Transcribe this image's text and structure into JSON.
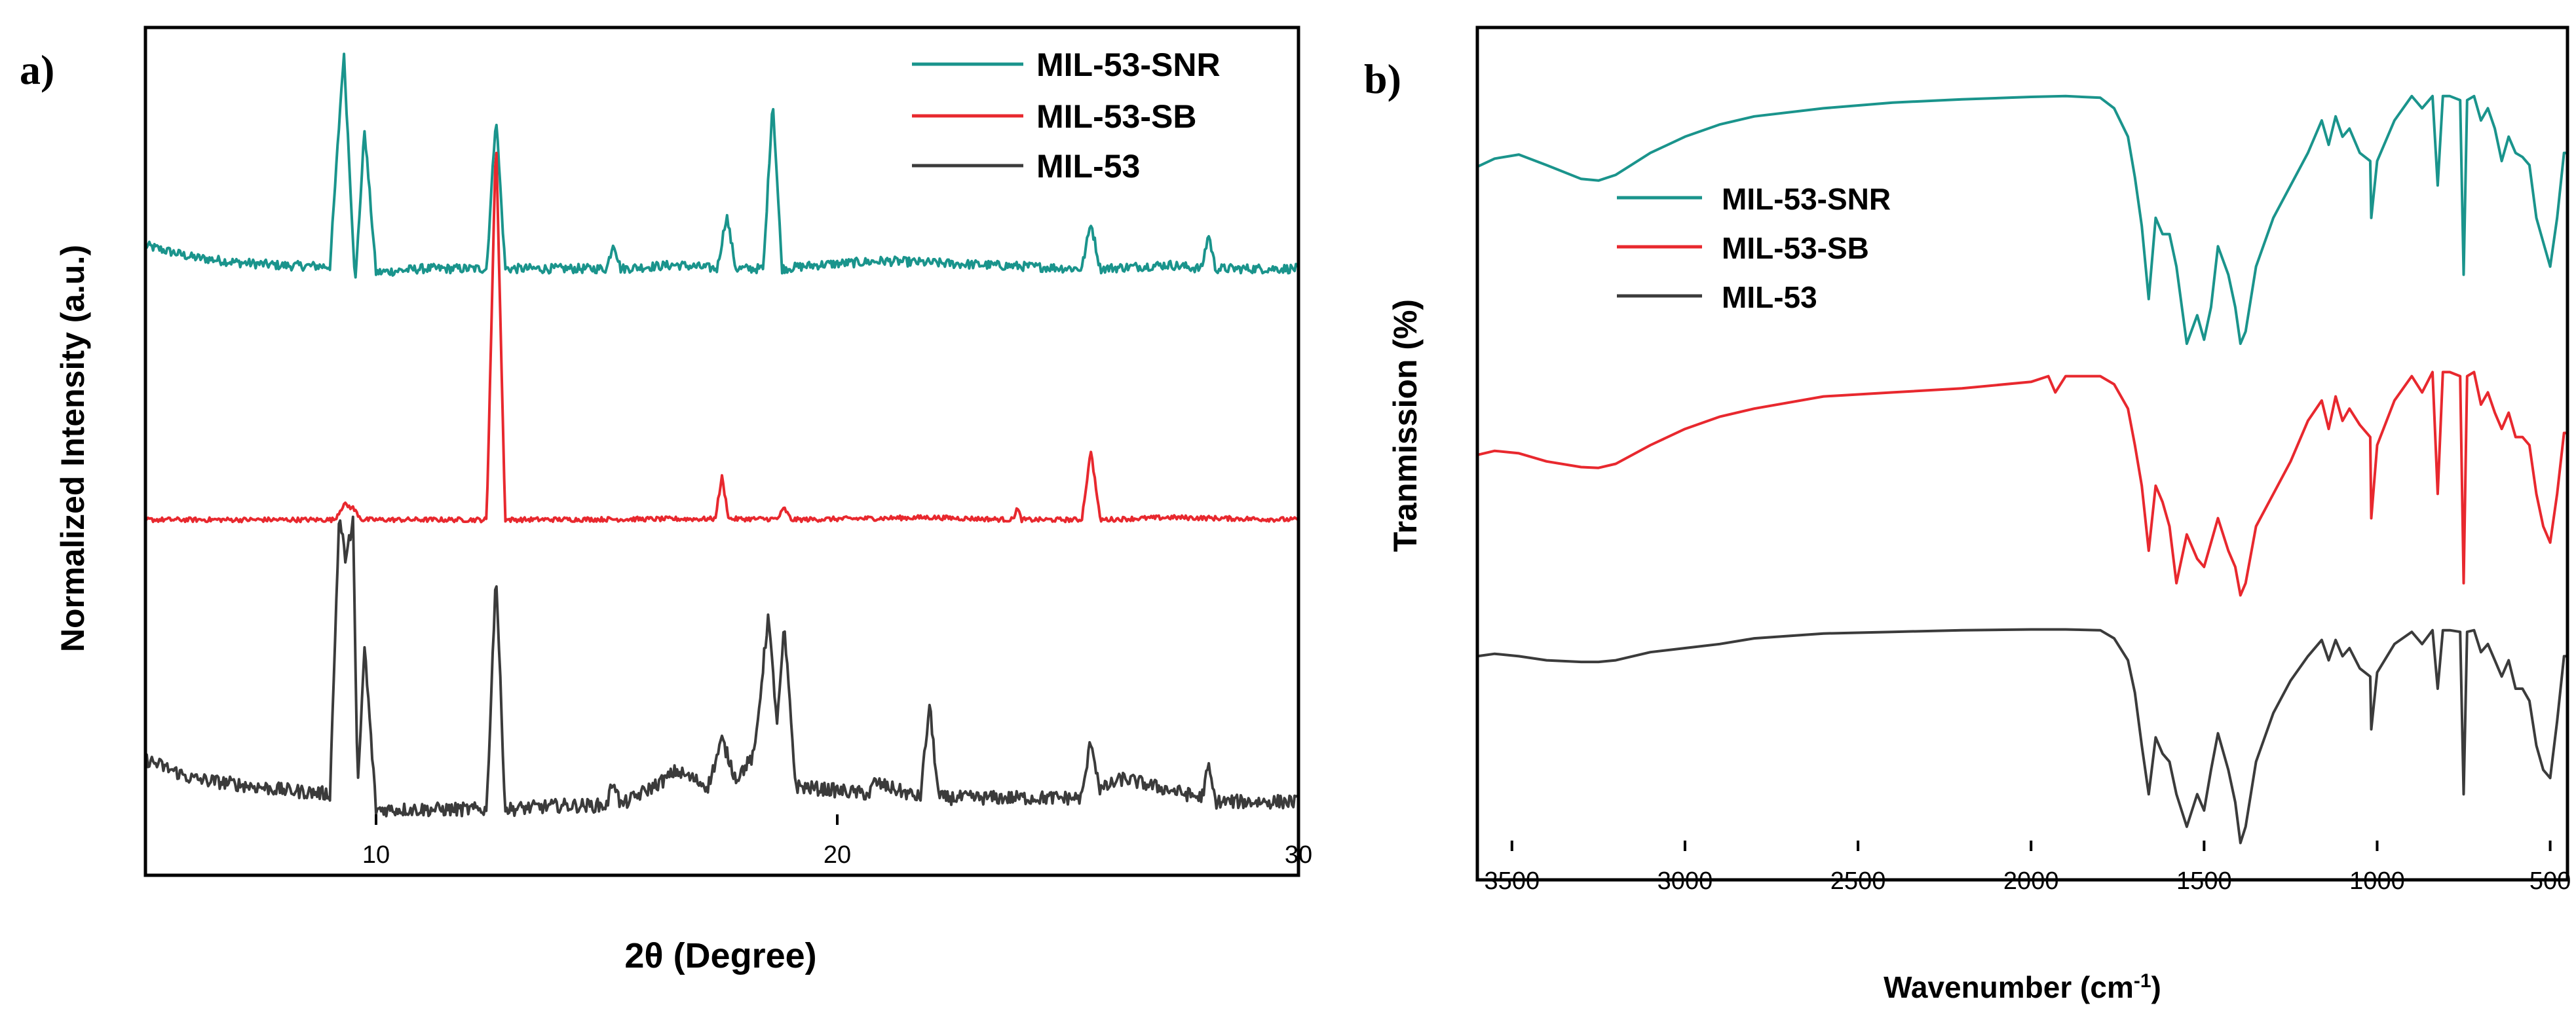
{
  "chart_data": [
    {
      "panel": "a)",
      "type": "line",
      "xlabel": "2θ (Degree)",
      "ylabel": "Normalized Intensity (a.u.)",
      "xlim": [
        5,
        30
      ],
      "xticks": [
        10,
        20,
        30
      ],
      "legend_position": "top-right",
      "grid": false,
      "series": [
        {
          "name": "MIL-53-SNR",
          "color": "#1a948c",
          "baseline": 0.72,
          "noise": 0.006,
          "x": [
            5,
            6,
            7,
            8,
            9.0,
            9.3,
            9.55,
            9.75,
            10.0,
            11,
            12.4,
            12.6,
            12.8,
            14,
            15.0,
            15.15,
            15.3,
            16.5,
            17.4,
            17.6,
            17.8,
            18.4,
            18.6,
            18.8,
            19.6,
            21,
            25.3,
            25.5,
            25.7,
            27.2,
            27.9,
            28.05,
            28.2,
            30
          ],
          "y": [
            0.75,
            0.735,
            0.728,
            0.724,
            0.723,
            1.0,
            0.7,
            0.9,
            0.715,
            0.72,
            0.72,
            0.92,
            0.72,
            0.72,
            0.72,
            0.755,
            0.72,
            0.725,
            0.72,
            0.79,
            0.72,
            0.72,
            0.94,
            0.72,
            0.725,
            0.73,
            0.72,
            0.78,
            0.72,
            0.725,
            0.72,
            0.765,
            0.72,
            0.72
          ]
        },
        {
          "name": "MIL-53-SB",
          "color": "#e8282e",
          "baseline": 0.395,
          "noise": 0.003,
          "x": [
            5,
            9.1,
            9.3,
            9.5,
            9.7,
            12.4,
            12.6,
            12.8,
            16.5,
            17.35,
            17.5,
            17.65,
            18.7,
            18.85,
            19.0,
            22,
            23.8,
            23.9,
            24.0,
            25.3,
            25.5,
            25.7,
            27.2,
            30
          ],
          "y": [
            0.395,
            0.395,
            0.415,
            0.41,
            0.395,
            0.395,
            0.895,
            0.395,
            0.396,
            0.396,
            0.45,
            0.396,
            0.396,
            0.41,
            0.395,
            0.398,
            0.395,
            0.41,
            0.395,
            0.395,
            0.485,
            0.395,
            0.398,
            0.395
          ]
        },
        {
          "name": "MIL-53",
          "color": "#3b3b3b",
          "baseline": 0.02,
          "noise": 0.009,
          "x": [
            5,
            6,
            8,
            9.0,
            9.2,
            9.35,
            9.5,
            9.6,
            9.75,
            10.0,
            11,
            12.4,
            12.6,
            12.8,
            14,
            15.0,
            15.15,
            15.3,
            16.3,
            16.5,
            17.2,
            17.5,
            17.8,
            18.2,
            18.5,
            18.7,
            18.85,
            19.1,
            20.7,
            20.8,
            21.8,
            22.0,
            22.2,
            25.3,
            25.5,
            25.7,
            26.2,
            27.9,
            28.05,
            28.2,
            30
          ],
          "y": [
            0.085,
            0.06,
            0.045,
            0.04,
            0.4,
            0.34,
            0.4,
            0.04,
            0.23,
            0.02,
            0.02,
            0.02,
            0.33,
            0.02,
            0.025,
            0.025,
            0.06,
            0.025,
            0.06,
            0.07,
            0.05,
            0.11,
            0.06,
            0.09,
            0.27,
            0.13,
            0.255,
            0.05,
            0.04,
            0.055,
            0.035,
            0.155,
            0.035,
            0.035,
            0.11,
            0.045,
            0.06,
            0.035,
            0.075,
            0.03,
            0.03
          ]
        }
      ]
    },
    {
      "panel": "b)",
      "type": "line",
      "xlabel": "Wavenumber (cm⁻¹)",
      "xlabel_main": "Wavenumber (cm",
      "xlabel_sup": "-1",
      "xlabel_end": ")",
      "ylabel": "Tranmission (%)",
      "xlim": [
        3600,
        450
      ],
      "xticks": [
        3500,
        3000,
        2500,
        2000,
        1500,
        1000,
        500
      ],
      "legend_position": "upper-left",
      "grid": false,
      "series": [
        {
          "name": "MIL-53-SNR",
          "color": "#1a948c",
          "x": [
            3600,
            3550,
            3480,
            3400,
            3300,
            3250,
            3200,
            3100,
            3000,
            2900,
            2800,
            2600,
            2400,
            2200,
            2000,
            1900,
            1800,
            1760,
            1720,
            1700,
            1680,
            1660,
            1640,
            1620,
            1600,
            1580,
            1550,
            1520,
            1500,
            1480,
            1460,
            1430,
            1410,
            1395,
            1380,
            1350,
            1300,
            1250,
            1200,
            1160,
            1140,
            1120,
            1100,
            1080,
            1050,
            1020,
            1017,
            1000,
            950,
            900,
            870,
            840,
            825,
            810,
            790,
            760,
            750,
            740,
            720,
            700,
            680,
            660,
            640,
            620,
            600,
            580,
            560,
            540,
            520,
            500,
            480,
            460,
            450
          ],
          "y": [
            0.843,
            0.853,
            0.858,
            0.845,
            0.828,
            0.826,
            0.833,
            0.86,
            0.88,
            0.895,
            0.905,
            0.915,
            0.922,
            0.926,
            0.929,
            0.93,
            0.928,
            0.915,
            0.88,
            0.83,
            0.77,
            0.68,
            0.78,
            0.76,
            0.76,
            0.72,
            0.625,
            0.66,
            0.63,
            0.67,
            0.745,
            0.71,
            0.67,
            0.625,
            0.64,
            0.72,
            0.78,
            0.82,
            0.86,
            0.9,
            0.87,
            0.905,
            0.88,
            0.89,
            0.86,
            0.85,
            0.78,
            0.85,
            0.9,
            0.93,
            0.915,
            0.93,
            0.82,
            0.93,
            0.93,
            0.925,
            0.71,
            0.925,
            0.93,
            0.9,
            0.915,
            0.89,
            0.85,
            0.88,
            0.86,
            0.855,
            0.845,
            0.78,
            0.75,
            0.72,
            0.78,
            0.86,
            0.86
          ]
        },
        {
          "name": "MIL-53-SB",
          "color": "#e8282e",
          "x": [
            3600,
            3550,
            3480,
            3400,
            3300,
            3250,
            3200,
            3100,
            3000,
            2900,
            2800,
            2600,
            2400,
            2200,
            2000,
            1950,
            1930,
            1900,
            1800,
            1760,
            1720,
            1700,
            1680,
            1660,
            1640,
            1620,
            1600,
            1580,
            1550,
            1520,
            1500,
            1480,
            1460,
            1430,
            1410,
            1395,
            1380,
            1350,
            1300,
            1250,
            1200,
            1160,
            1140,
            1120,
            1100,
            1080,
            1050,
            1020,
            1017,
            1000,
            950,
            900,
            870,
            840,
            825,
            810,
            790,
            760,
            750,
            740,
            720,
            700,
            680,
            660,
            640,
            620,
            600,
            580,
            560,
            540,
            520,
            500,
            480,
            460,
            450
          ],
          "y": [
            0.488,
            0.493,
            0.49,
            0.48,
            0.473,
            0.472,
            0.477,
            0.5,
            0.52,
            0.535,
            0.545,
            0.56,
            0.565,
            0.57,
            0.578,
            0.585,
            0.565,
            0.585,
            0.585,
            0.575,
            0.545,
            0.5,
            0.45,
            0.37,
            0.45,
            0.43,
            0.4,
            0.33,
            0.39,
            0.36,
            0.35,
            0.38,
            0.41,
            0.37,
            0.35,
            0.315,
            0.33,
            0.4,
            0.44,
            0.48,
            0.53,
            0.555,
            0.52,
            0.56,
            0.53,
            0.545,
            0.525,
            0.51,
            0.41,
            0.5,
            0.555,
            0.585,
            0.565,
            0.59,
            0.44,
            0.59,
            0.59,
            0.585,
            0.33,
            0.585,
            0.59,
            0.55,
            0.565,
            0.54,
            0.52,
            0.54,
            0.51,
            0.51,
            0.5,
            0.44,
            0.4,
            0.38,
            0.44,
            0.515,
            0.515
          ]
        },
        {
          "name": "MIL-53",
          "color": "#3b3b3b",
          "x": [
            3600,
            3550,
            3480,
            3400,
            3300,
            3250,
            3200,
            3100,
            3000,
            2900,
            2800,
            2600,
            2400,
            2200,
            2000,
            1900,
            1800,
            1760,
            1720,
            1700,
            1680,
            1660,
            1640,
            1620,
            1600,
            1580,
            1550,
            1520,
            1500,
            1480,
            1460,
            1430,
            1410,
            1395,
            1380,
            1350,
            1300,
            1250,
            1200,
            1160,
            1140,
            1120,
            1100,
            1080,
            1050,
            1020,
            1017,
            1000,
            950,
            900,
            870,
            840,
            825,
            810,
            790,
            760,
            750,
            740,
            720,
            700,
            680,
            660,
            640,
            620,
            600,
            580,
            560,
            540,
            520,
            500,
            480,
            460,
            450
          ],
          "y": [
            0.24,
            0.243,
            0.24,
            0.235,
            0.233,
            0.233,
            0.235,
            0.245,
            0.25,
            0.255,
            0.262,
            0.268,
            0.27,
            0.272,
            0.273,
            0.273,
            0.272,
            0.262,
            0.235,
            0.195,
            0.13,
            0.07,
            0.14,
            0.12,
            0.11,
            0.07,
            0.03,
            0.07,
            0.05,
            0.1,
            0.145,
            0.1,
            0.06,
            0.01,
            0.03,
            0.11,
            0.17,
            0.21,
            0.24,
            0.26,
            0.235,
            0.26,
            0.24,
            0.25,
            0.225,
            0.215,
            0.15,
            0.22,
            0.255,
            0.27,
            0.255,
            0.272,
            0.2,
            0.272,
            0.272,
            0.27,
            0.07,
            0.27,
            0.272,
            0.245,
            0.255,
            0.235,
            0.215,
            0.235,
            0.2,
            0.2,
            0.185,
            0.13,
            0.1,
            0.09,
            0.16,
            0.24,
            0.24
          ]
        }
      ]
    }
  ]
}
